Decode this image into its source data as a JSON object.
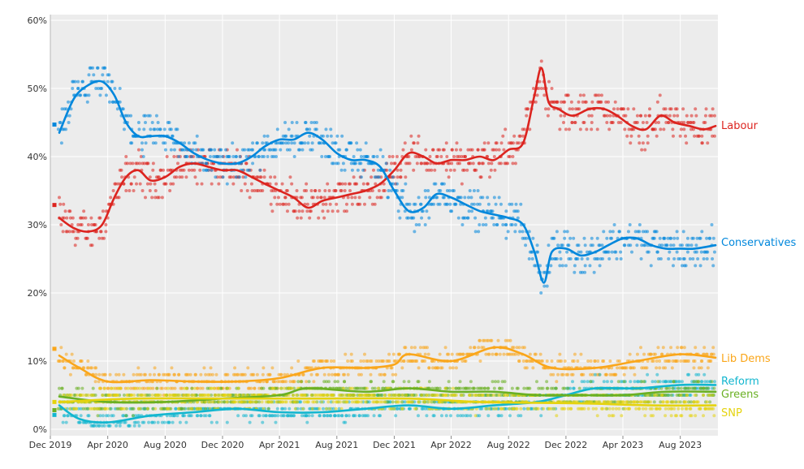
{
  "chart_data": {
    "type": "scatter",
    "title": "",
    "xlabel": "",
    "ylabel": "",
    "x_ticks": [
      "Dec 2019",
      "Apr 2020",
      "Aug 2020",
      "Dec 2020",
      "Apr 2021",
      "Aug 2021",
      "Dec 2021",
      "Apr 2022",
      "Aug 2022",
      "Dec 2022",
      "Apr 2023",
      "Aug 2023"
    ],
    "y_ticks": [
      "0%",
      "10%",
      "20%",
      "30%",
      "40%",
      "50%",
      "60%"
    ],
    "xlim": [
      "2019-12-01",
      "2023-10-20"
    ],
    "ylim": [
      0,
      60
    ],
    "grid": true,
    "legend": "labels at right end of each line",
    "election_2019": [
      {
        "party": "Conservatives",
        "value": 44.7
      },
      {
        "party": "Labour",
        "value": 32.9
      },
      {
        "party": "Lib Dems",
        "value": 11.8
      },
      {
        "party": "SNP",
        "value": 4.0
      },
      {
        "party": "Greens",
        "value": 2.8
      },
      {
        "party": "Reform",
        "value": 2.1
      }
    ],
    "series": [
      {
        "name": "Labour",
        "color": "#dc241f",
        "trend": [
          [
            "2019-12-20",
            31
          ],
          [
            "2020-01-20",
            29.5
          ],
          [
            "2020-02-20",
            29
          ],
          [
            "2020-03-20",
            30
          ],
          [
            "2020-04-15",
            34
          ],
          [
            "2020-05-10",
            37
          ],
          [
            "2020-06-05",
            38
          ],
          [
            "2020-07-01",
            36.5
          ],
          [
            "2020-08-01",
            37
          ],
          [
            "2020-09-01",
            38.5
          ],
          [
            "2020-10-01",
            39
          ],
          [
            "2020-11-01",
            38.5
          ],
          [
            "2020-12-01",
            38
          ],
          [
            "2021-01-01",
            38
          ],
          [
            "2021-02-01",
            37
          ],
          [
            "2021-03-01",
            36
          ],
          [
            "2021-04-01",
            35
          ],
          [
            "2021-05-01",
            34
          ],
          [
            "2021-06-01",
            32.5
          ],
          [
            "2021-07-01",
            33.5
          ],
          [
            "2021-08-01",
            34
          ],
          [
            "2021-09-01",
            34.5
          ],
          [
            "2021-10-01",
            35
          ],
          [
            "2021-11-01",
            36
          ],
          [
            "2021-12-01",
            38
          ],
          [
            "2022-01-01",
            40.5
          ],
          [
            "2022-02-01",
            40
          ],
          [
            "2022-03-01",
            39
          ],
          [
            "2022-04-01",
            39.5
          ],
          [
            "2022-05-01",
            39.5
          ],
          [
            "2022-06-01",
            40
          ],
          [
            "2022-07-01",
            39.5
          ],
          [
            "2022-08-01",
            41
          ],
          [
            "2022-09-01",
            42
          ],
          [
            "2022-09-25",
            49
          ],
          [
            "2022-10-10",
            53
          ],
          [
            "2022-10-25",
            48
          ],
          [
            "2022-11-15",
            47
          ],
          [
            "2022-12-15",
            46
          ],
          [
            "2023-01-20",
            47
          ],
          [
            "2023-02-20",
            47
          ],
          [
            "2023-03-20",
            46
          ],
          [
            "2023-04-20",
            44.5
          ],
          [
            "2023-05-20",
            44
          ],
          [
            "2023-06-20",
            46
          ],
          [
            "2023-07-20",
            45
          ],
          [
            "2023-08-20",
            44.5
          ],
          [
            "2023-09-20",
            44
          ],
          [
            "2023-10-15",
            44.5
          ]
        ],
        "scatter": [
          [
            0.2,
            31
          ],
          [
            0.8,
            2.5
          ],
          [
            1.3,
            2
          ],
          [
            1.9,
            1.5
          ],
          [
            2.4,
            2
          ]
        ],
        "scatter_base": 44.5
      },
      {
        "name": "Conservatives",
        "color": "#0087dc",
        "trend": [
          [
            "2019-12-20",
            43.5
          ],
          [
            "2020-01-20",
            48.5
          ],
          [
            "2020-02-20",
            50.5
          ],
          [
            "2020-03-20",
            51
          ],
          [
            "2020-04-15",
            49
          ],
          [
            "2020-05-10",
            45
          ],
          [
            "2020-06-05",
            43
          ],
          [
            "2020-07-01",
            43
          ],
          [
            "2020-08-01",
            43
          ],
          [
            "2020-09-01",
            42
          ],
          [
            "2020-10-01",
            40.5
          ],
          [
            "2020-11-01",
            39.5
          ],
          [
            "2020-12-01",
            39
          ],
          [
            "2021-01-01",
            39
          ],
          [
            "2021-02-01",
            40
          ],
          [
            "2021-03-01",
            41.5
          ],
          [
            "2021-04-01",
            42.5
          ],
          [
            "2021-05-01",
            42.5
          ],
          [
            "2021-06-01",
            43.5
          ],
          [
            "2021-07-01",
            42.5
          ],
          [
            "2021-08-01",
            40.5
          ],
          [
            "2021-09-01",
            39.5
          ],
          [
            "2021-10-01",
            39.5
          ],
          [
            "2021-11-01",
            38.5
          ],
          [
            "2021-12-01",
            35
          ],
          [
            "2022-01-01",
            32
          ],
          [
            "2022-02-01",
            32.5
          ],
          [
            "2022-03-01",
            34.5
          ],
          [
            "2022-04-01",
            34
          ],
          [
            "2022-05-01",
            33
          ],
          [
            "2022-06-01",
            32
          ],
          [
            "2022-07-01",
            31.5
          ],
          [
            "2022-08-01",
            31
          ],
          [
            "2022-09-01",
            30
          ],
          [
            "2022-09-25",
            26
          ],
          [
            "2022-10-15",
            21.5
          ],
          [
            "2022-11-01",
            26
          ],
          [
            "2022-12-01",
            26.5
          ],
          [
            "2023-01-01",
            25.5
          ],
          [
            "2023-02-01",
            26
          ],
          [
            "2023-03-01",
            27
          ],
          [
            "2023-04-01",
            28
          ],
          [
            "2023-05-01",
            28
          ],
          [
            "2023-06-01",
            27
          ],
          [
            "2023-07-01",
            26.5
          ],
          [
            "2023-08-01",
            26.5
          ],
          [
            "2023-09-01",
            26.5
          ],
          [
            "2023-10-15",
            27
          ]
        ]
      },
      {
        "name": "Lib Dems",
        "color": "#faa61a",
        "trend": [
          [
            "2019-12-20",
            10.8
          ],
          [
            "2020-02-01",
            9
          ],
          [
            "2020-04-01",
            7
          ],
          [
            "2020-07-01",
            7.2
          ],
          [
            "2020-10-01",
            7
          ],
          [
            "2021-01-01",
            7
          ],
          [
            "2021-04-01",
            7.5
          ],
          [
            "2021-07-01",
            9
          ],
          [
            "2021-10-01",
            9
          ],
          [
            "2021-12-01",
            9.5
          ],
          [
            "2022-01-01",
            11
          ],
          [
            "2022-04-01",
            10
          ],
          [
            "2022-07-01",
            12
          ],
          [
            "2022-09-01",
            11
          ],
          [
            "2022-11-01",
            9
          ],
          [
            "2023-02-01",
            9
          ],
          [
            "2023-05-01",
            10
          ],
          [
            "2023-08-01",
            11
          ],
          [
            "2023-10-15",
            10.5
          ]
        ]
      },
      {
        "name": "Reform",
        "color": "#12b6cf",
        "trend": [
          [
            "2019-12-20",
            3.5
          ],
          [
            "2020-02-01",
            1.5
          ],
          [
            "2020-04-01",
            1
          ],
          [
            "2020-07-01",
            2
          ],
          [
            "2020-10-01",
            2.5
          ],
          [
            "2021-01-01",
            3
          ],
          [
            "2021-04-01",
            2.5
          ],
          [
            "2021-07-01",
            2.5
          ],
          [
            "2021-10-01",
            3
          ],
          [
            "2022-01-01",
            3.5
          ],
          [
            "2022-04-01",
            3
          ],
          [
            "2022-07-01",
            3.5
          ],
          [
            "2022-10-01",
            4
          ],
          [
            "2022-12-01",
            5
          ],
          [
            "2023-02-01",
            6
          ],
          [
            "2023-05-01",
            6
          ],
          [
            "2023-08-01",
            6.5
          ],
          [
            "2023-10-15",
            6.5
          ]
        ]
      },
      {
        "name": "Greens",
        "color": "#6ab023",
        "trend": [
          [
            "2019-12-20",
            4.8
          ],
          [
            "2020-04-01",
            4
          ],
          [
            "2020-08-01",
            4
          ],
          [
            "2020-12-01",
            4.5
          ],
          [
            "2021-04-01",
            5
          ],
          [
            "2021-06-01",
            6
          ],
          [
            "2021-10-01",
            5.5
          ],
          [
            "2022-01-01",
            6
          ],
          [
            "2022-04-01",
            5.5
          ],
          [
            "2022-07-01",
            5.5
          ],
          [
            "2022-10-01",
            5
          ],
          [
            "2023-01-01",
            5
          ],
          [
            "2023-04-01",
            5
          ],
          [
            "2023-07-01",
            5.5
          ],
          [
            "2023-10-15",
            5.5
          ]
        ]
      },
      {
        "name": "SNP",
        "color": "#e5d30e",
        "trend": [
          [
            "2019-12-20",
            4
          ],
          [
            "2020-06-01",
            4.5
          ],
          [
            "2021-01-01",
            4.5
          ],
          [
            "2021-06-01",
            4.5
          ],
          [
            "2022-01-01",
            4.5
          ],
          [
            "2022-06-01",
            4
          ],
          [
            "2023-01-01",
            3.8
          ],
          [
            "2023-06-01",
            3.5
          ],
          [
            "2023-10-15",
            3.5
          ]
        ]
      }
    ]
  }
}
